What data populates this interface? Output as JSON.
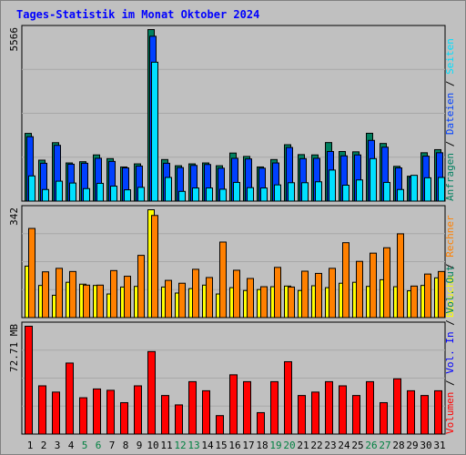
{
  "chart_data": {
    "title": "Tages-Statistik im Monat Oktober 2024",
    "categories": [
      "1",
      "2",
      "3",
      "4",
      "5",
      "6",
      "7",
      "8",
      "9",
      "10",
      "11",
      "12",
      "13",
      "14",
      "15",
      "16",
      "17",
      "18",
      "19",
      "20",
      "21",
      "22",
      "23",
      "24",
      "25",
      "26",
      "27",
      "28",
      "29",
      "30",
      "31"
    ],
    "weekend_days": [
      "5",
      "6",
      "12",
      "13",
      "19",
      "20",
      "26",
      "27"
    ],
    "colors": {
      "weekday_label": "#000000",
      "weekend_label": "#008040",
      "anfragen": "#008060",
      "dateien": "#0040ff",
      "seiten": "#00e0ff",
      "besuche": "#ffff00",
      "rechner": "#ff8000",
      "volumen": "#ff0000",
      "vol_in": "#0000ff",
      "vol_out": "#008060"
    },
    "charts": [
      {
        "type": "bar",
        "panel": "hits",
        "ymax_label": "5566",
        "ymax": 5566,
        "series": [
          {
            "name": "Anfragen",
            "values": [
              2206,
              1340,
              1906,
              1250,
              1290,
              1510,
              1390,
              1120,
              1220,
              5566,
              1360,
              1160,
              1220,
              1250,
              1160,
              1570,
              1460,
              1120,
              1360,
              1840,
              1520,
              1510,
              1910,
              1620,
              1610,
              2210,
              1880,
              1140,
              820,
              1580,
              1680
            ]
          },
          {
            "name": "Dateien",
            "values": [
              2100,
              1240,
              1820,
              1210,
              1240,
              1400,
              1300,
              1090,
              1150,
              5350,
              1240,
              1100,
              1170,
              1200,
              1080,
              1400,
              1380,
              1080,
              1250,
              1750,
              1390,
              1400,
              1620,
              1480,
              1510,
              1980,
              1760,
              1090,
              790,
              1470,
              1580
            ]
          },
          {
            "name": "Seiten",
            "values": [
              830,
              390,
              660,
              600,
              420,
              590,
              500,
              380,
              460,
              4510,
              780,
              330,
              440,
              440,
              400,
              620,
              450,
              440,
              540,
              610,
              610,
              640,
              1020,
              530,
              700,
              1390,
              620,
              390,
              850,
              770,
              780
            ]
          }
        ],
        "labels": [
          {
            "text": "Anfragen",
            "color": "#008060"
          },
          {
            "text": "Dateien",
            "color": "#0040ff"
          },
          {
            "text": "Seiten",
            "color": "#00e0ff"
          }
        ]
      },
      {
        "type": "bar",
        "panel": "visits",
        "ymax_label": "342",
        "ymax": 342,
        "series": [
          {
            "name": "Besuche",
            "values": [
              164,
              103,
              72,
              113,
              107,
              103,
              76,
              98,
              100,
              342,
              98,
              79,
              93,
              104,
              76,
              96,
              87,
              90,
              99,
              101,
              87,
              102,
              96,
              110,
              113,
              100,
              121,
              99,
              86,
              103,
              127
            ]
          },
          {
            "name": "Rechner",
            "values": [
              283,
              146,
              157,
              147,
              104,
              104,
              150,
              132,
              198,
              324,
              119,
              110,
              154,
              128,
              240,
              151,
              125,
              99,
              160,
              98,
              148,
              141,
              157,
              238,
              179,
              205,
              222,
              266,
              101,
              139,
              147
            ]
          }
        ],
        "labels": [
          {
            "text": "Besuche",
            "color": "#ffff00"
          },
          {
            "text": "Rechner",
            "color": "#ff8000"
          }
        ]
      },
      {
        "type": "bar",
        "panel": "volume",
        "ymax_label": "72.71 MB",
        "ymax": 72.71,
        "series": [
          {
            "name": "Volumen",
            "values": [
              72.71,
              32.7,
              28.5,
              48.0,
              24.7,
              30.6,
              29.7,
              21.4,
              32.7,
              55.7,
              26.2,
              19.9,
              35.5,
              29.4,
              12.7,
              40.1,
              35.5,
              14.7,
              35.5,
              48.9,
              26.2,
              28.5,
              35.5,
              32.7,
              26.2,
              35.5,
              21.4,
              37.4,
              29.4,
              26.2,
              29.4
            ]
          }
        ],
        "labels": [
          {
            "text": "Volumen",
            "color": "#ff0000"
          },
          {
            "text": "Vol. In",
            "color": "#0000ff"
          },
          {
            "text": "Vol. Out",
            "color": "#008060"
          }
        ]
      }
    ]
  }
}
